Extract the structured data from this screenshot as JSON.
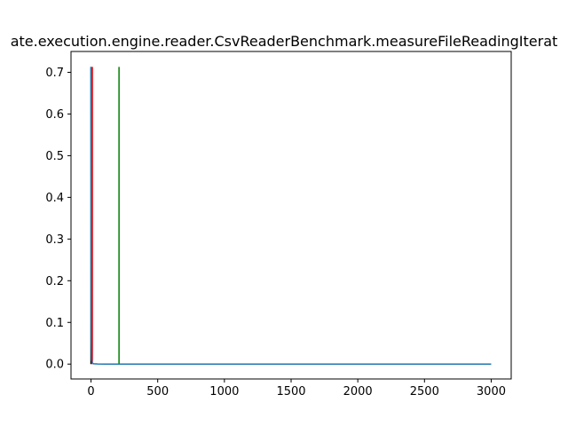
{
  "chart_data": {
    "type": "line",
    "title": "ate.execution.engine.reader.CsvReaderBenchmark.measureFileReadingIterat",
    "xlabel": "",
    "ylabel": "",
    "xlim": [
      -150,
      3150
    ],
    "ylim": [
      -0.0357,
      0.75
    ],
    "x_ticks": [
      0,
      500,
      1000,
      1500,
      2000,
      2500,
      3000
    ],
    "y_ticks": [
      0.0,
      0.1,
      0.2,
      0.3,
      0.4,
      0.5,
      0.6,
      0.7
    ],
    "x_tick_labels": [
      "0",
      "500",
      "1000",
      "1500",
      "2000",
      "2500",
      "3000"
    ],
    "y_tick_labels": [
      "0.0",
      "0.1",
      "0.2",
      "0.3",
      "0.4",
      "0.5",
      "0.6",
      "0.7"
    ],
    "grid": false,
    "legend": "none",
    "series": [
      {
        "color": "#1f77b4",
        "x": [
          0,
          1,
          2,
          3,
          5,
          10,
          20,
          50,
          100,
          200,
          500,
          1000,
          1500,
          2000,
          2500,
          3000
        ],
        "y": [
          0.713,
          0.5,
          0.2,
          0.05,
          0.01,
          0.002,
          0.0008,
          0.0003,
          0.0001,
          5e-05,
          2e-05,
          1e-05,
          0.0,
          0.0,
          0.0,
          0.0
        ]
      }
    ],
    "vertical_lines": [
      {
        "color": "#000000",
        "x": 0,
        "y": [
          0.0,
          0.713
        ]
      },
      {
        "color": "#ff0000",
        "x": 10,
        "y": [
          0.0,
          0.713
        ]
      },
      {
        "color": "#008000",
        "x": 210,
        "y": [
          0.0,
          0.713
        ]
      }
    ]
  }
}
